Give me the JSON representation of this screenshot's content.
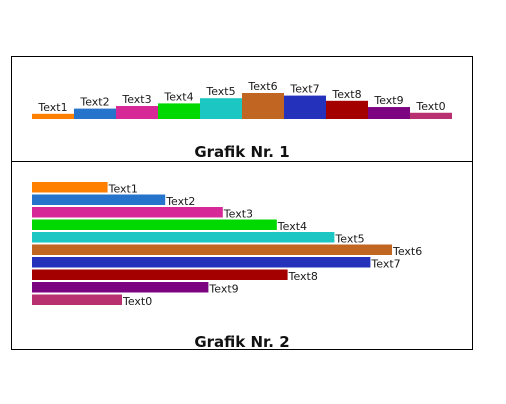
{
  "chart_data": [
    {
      "type": "bar",
      "orientation": "vertical",
      "title": "Grafik Nr. 1",
      "categories": [
        "Text1",
        "Text2",
        "Text3",
        "Text4",
        "Text5",
        "Text6",
        "Text7",
        "Text8",
        "Text9",
        "Text0"
      ],
      "values": [
        1,
        2,
        2.5,
        3,
        4,
        5,
        4.5,
        3.5,
        2.3,
        1.2
      ],
      "colors": [
        "#ff8000",
        "#2673cc",
        "#d62896",
        "#00d900",
        "#1cc6c2",
        "#c06622",
        "#2431ba",
        "#a50000",
        "#7d0480",
        "#b83070"
      ]
    },
    {
      "type": "bar",
      "orientation": "horizontal",
      "title": "Grafik Nr. 2",
      "categories": [
        "Text1",
        "Text2",
        "Text3",
        "Text4",
        "Text5",
        "Text6",
        "Text7",
        "Text8",
        "Text9",
        "Text0"
      ],
      "values": [
        2.1,
        3.7,
        5.3,
        6.8,
        8.4,
        10,
        9.4,
        7.1,
        4.9,
        2.5
      ],
      "colors": [
        "#ff8000",
        "#2673cc",
        "#d62896",
        "#00d900",
        "#1cc6c2",
        "#c06622",
        "#2431ba",
        "#a50000",
        "#7d0480",
        "#b83070"
      ]
    }
  ]
}
